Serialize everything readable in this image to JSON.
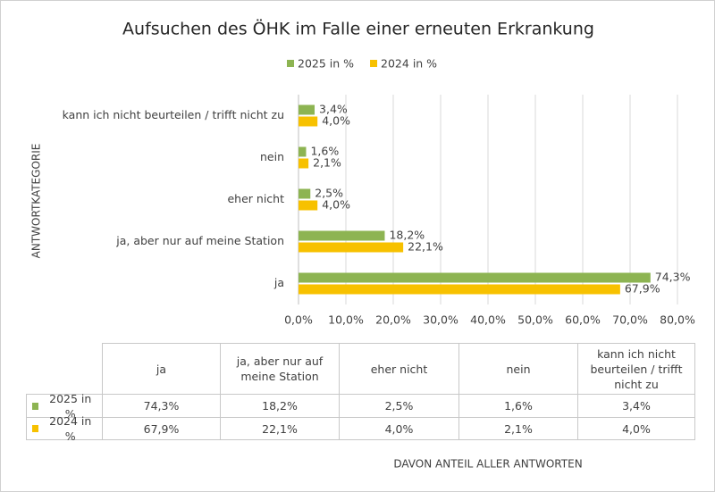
{
  "chart_data": {
    "type": "bar",
    "orientation": "horizontal",
    "title": "Aufsuchen des ÖHK im Falle einer erneuten Erkrankung",
    "y_label": "ANTWORTKATEGORIE",
    "x_label": "DAVON ANTEIL ALLER ANTWORTEN",
    "categories": [
      "ja",
      "ja, aber nur auf meine Station",
      "eher nicht",
      "nein",
      "kann ich nicht beurteilen / trifft nicht zu"
    ],
    "series": [
      {
        "name": "2025 in %",
        "color": "#8db452",
        "values": [
          74.3,
          18.2,
          2.5,
          1.6,
          3.4
        ],
        "value_labels": [
          "74,3%",
          "18,2%",
          "2,5%",
          "1,6%",
          "3,4%"
        ]
      },
      {
        "name": "2024 in %",
        "color": "#f7c100",
        "values": [
          67.9,
          22.1,
          4.0,
          2.1,
          4.0
        ],
        "value_labels": [
          "67,9%",
          "22,1%",
          "4,0%",
          "2,1%",
          "4,0%"
        ]
      }
    ],
    "xlim": [
      0,
      80
    ],
    "xticks": [
      {
        "value": 0,
        "label": "0,0%"
      },
      {
        "value": 10,
        "label": "10,0%"
      },
      {
        "value": 20,
        "label": "20,0%"
      },
      {
        "value": 30,
        "label": "30,0%"
      },
      {
        "value": 40,
        "label": "40,0%"
      },
      {
        "value": 50,
        "label": "50,0%"
      },
      {
        "value": 60,
        "label": "60,0%"
      },
      {
        "value": 70,
        "label": "70,0%"
      },
      {
        "value": 80,
        "label": "80,0%"
      }
    ],
    "grid": true,
    "legend": "top"
  }
}
